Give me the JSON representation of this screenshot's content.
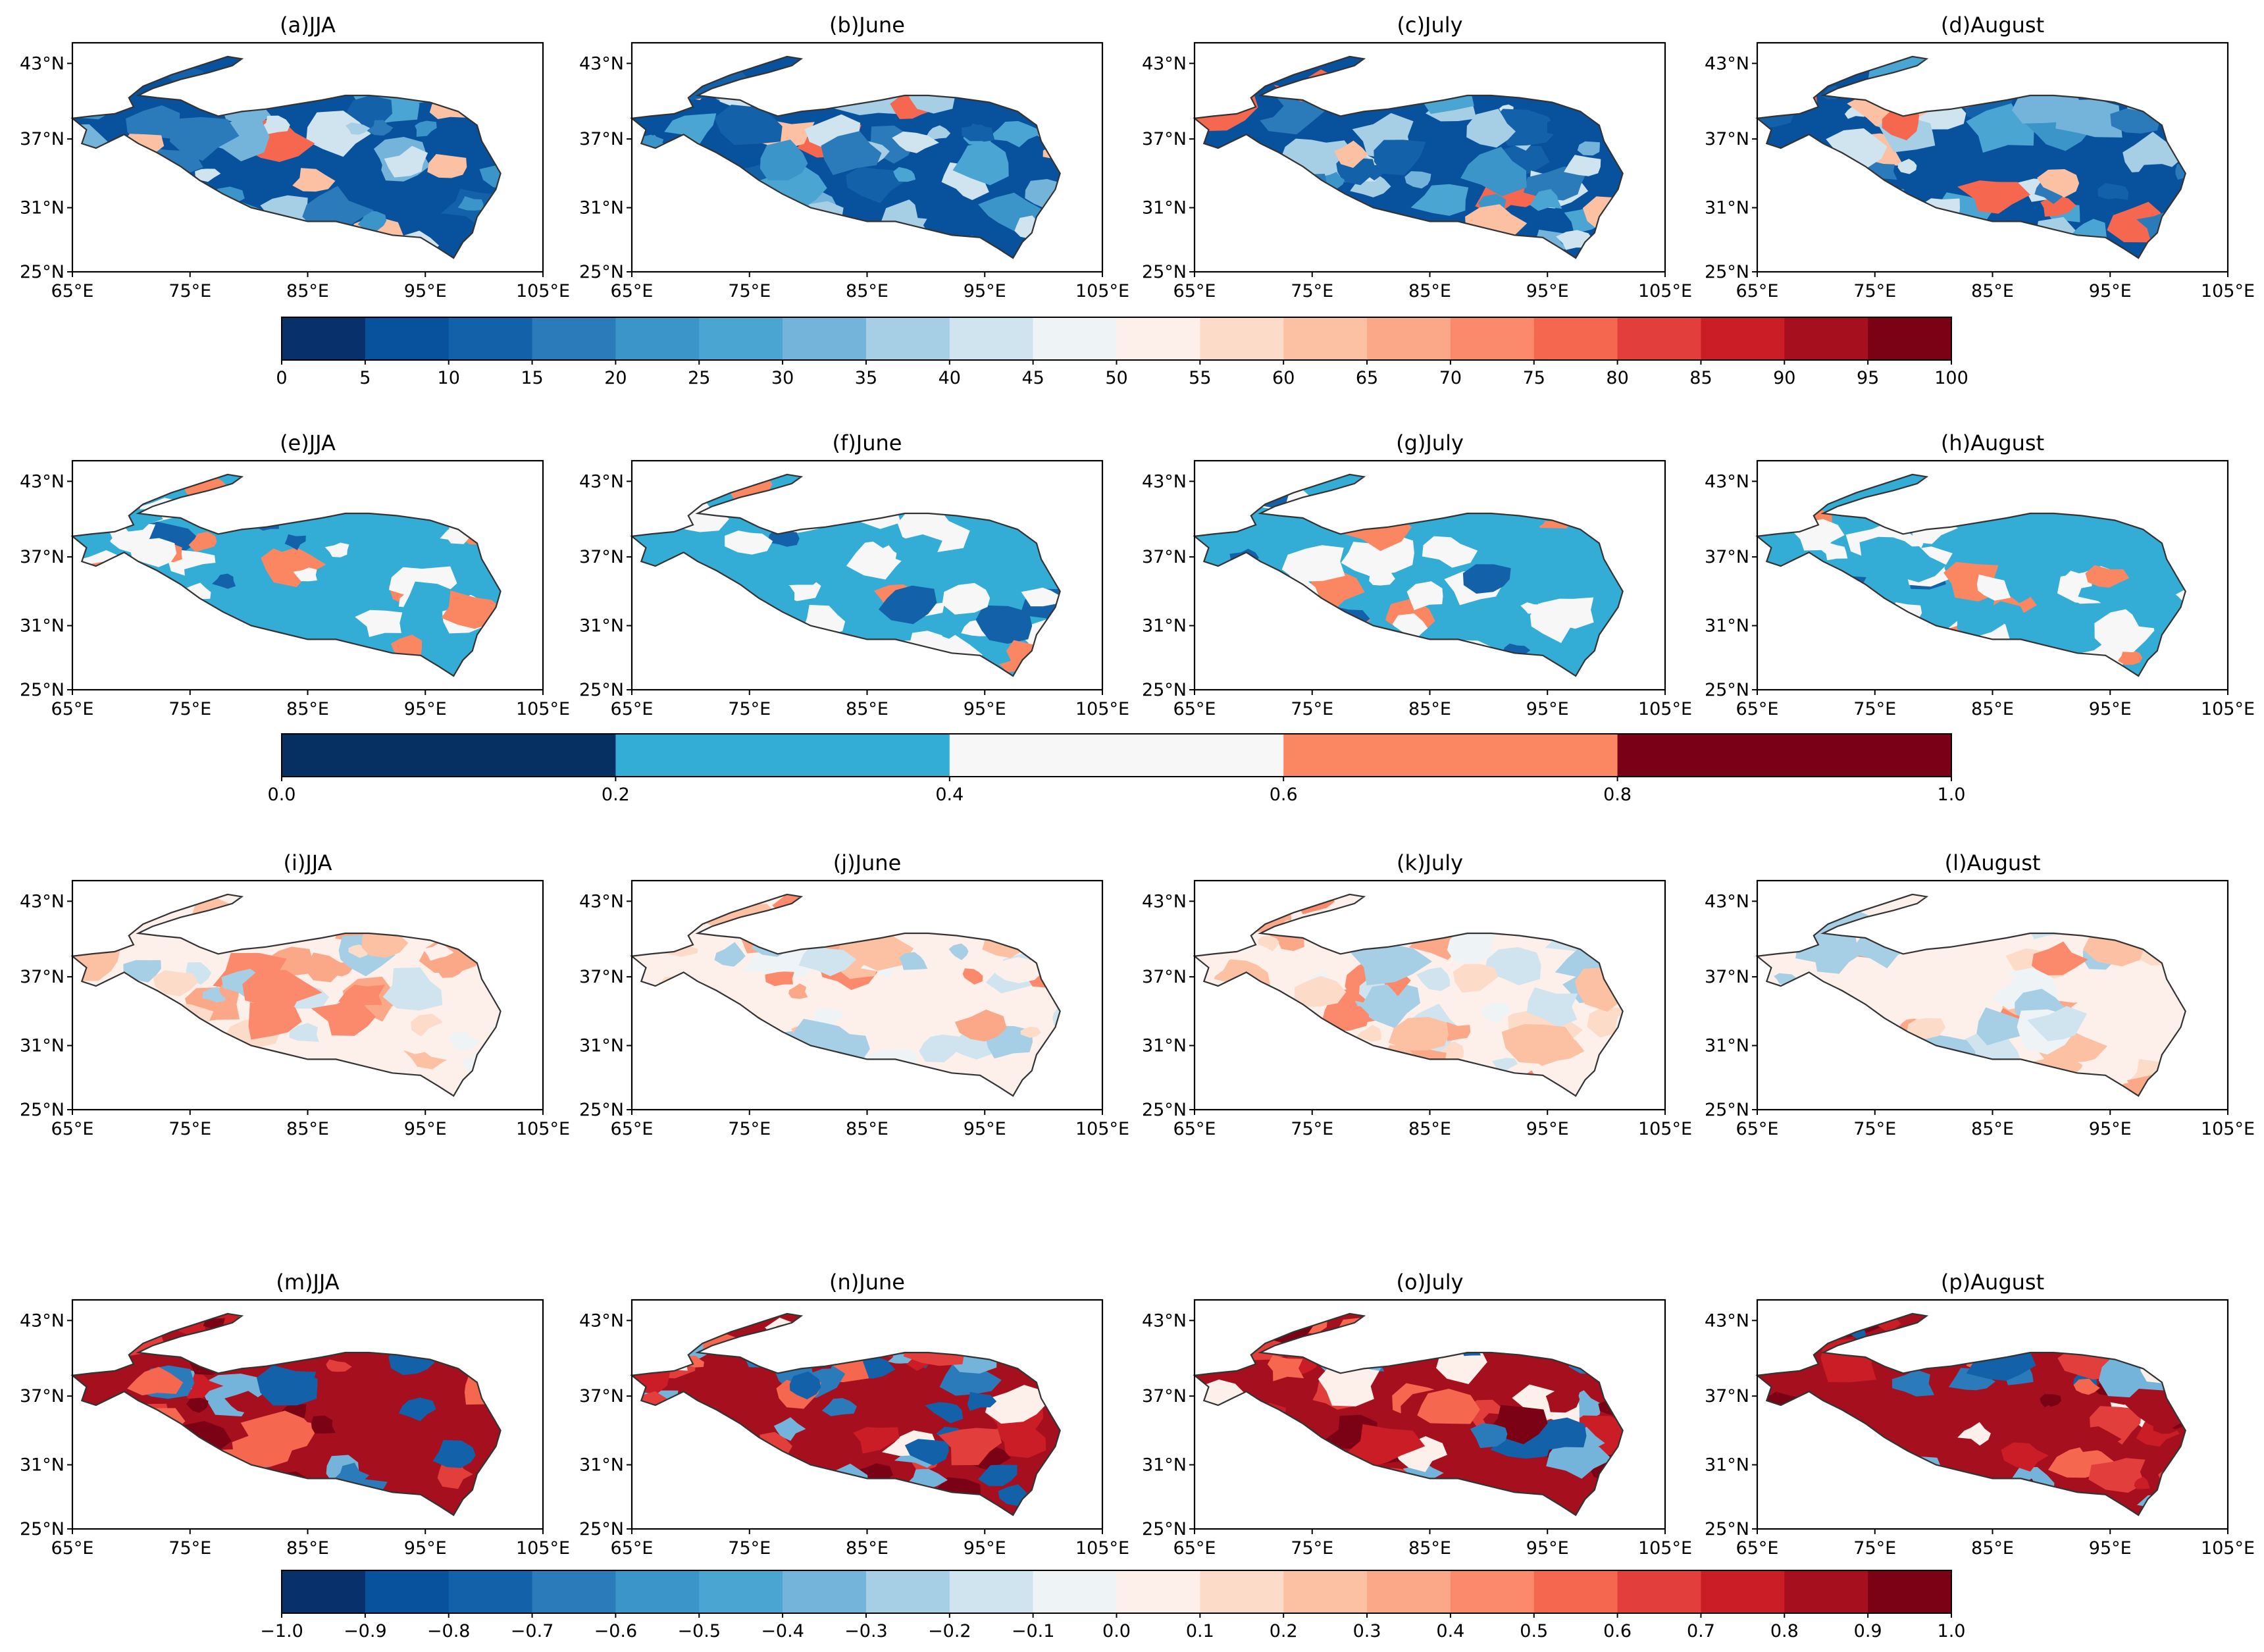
{
  "figure": {
    "longitude_ticks": [
      "65°E",
      "75°E",
      "85°E",
      "95°E",
      "105°E"
    ],
    "latitude_ticks": [
      "43°N",
      "37°N",
      "31°N",
      "25°N"
    ],
    "rows": [
      {
        "panels": [
          {
            "title": "(a)JJA"
          },
          {
            "title": "(b)June"
          },
          {
            "title": "(c)July"
          },
          {
            "title": "(d)August"
          }
        ],
        "palette": "blue_heavy",
        "colorbar": {
          "colors": [
            "#08306b",
            "#08519c",
            "#1361a9",
            "#2b7bba",
            "#3c95c9",
            "#4ba5d3",
            "#74b4da",
            "#a6cfe6",
            "#d0e4ef",
            "#eef3f6",
            "#fdf0ea",
            "#fcdcc9",
            "#fcc0a2",
            "#fba889",
            "#fa8a6b",
            "#f5674f",
            "#e23e3b",
            "#cb1d25",
            "#a50f1e",
            "#7b0215"
          ],
          "tick_labels": [
            "0",
            "5",
            "10",
            "15",
            "20",
            "25",
            "30",
            "35",
            "40",
            "45",
            "50",
            "55",
            "60",
            "65",
            "70",
            "75",
            "80",
            "85",
            "90",
            "95",
            "100"
          ]
        }
      },
      {
        "panels": [
          {
            "title": "(e)JJA"
          },
          {
            "title": "(f)June"
          },
          {
            "title": "(g)July"
          },
          {
            "title": "(h)August"
          }
        ],
        "palette": "mixed_five",
        "colorbar": {
          "colors": [
            "#053061",
            "#33acd6",
            "#f7f7f7",
            "#fb8762",
            "#7a0018"
          ],
          "tick_labels": [
            "0.0",
            "0.2",
            "0.4",
            "0.6",
            "0.8",
            "1.0"
          ]
        }
      },
      {
        "panels": [
          {
            "title": "(i)JJA"
          },
          {
            "title": "(j)June"
          },
          {
            "title": "(k)July"
          },
          {
            "title": "(l)August"
          }
        ],
        "palette": "soft_diverging",
        "colorbar": null
      },
      {
        "panels": [
          {
            "title": "(m)JJA"
          },
          {
            "title": "(n)June"
          },
          {
            "title": "(o)July"
          },
          {
            "title": "(p)August"
          }
        ],
        "palette": "strong_diverging",
        "colorbar": {
          "colors": [
            "#08306b",
            "#08519c",
            "#1361a9",
            "#2b7bba",
            "#3c95c9",
            "#4ba5d3",
            "#74b4da",
            "#a6cfe6",
            "#d0e4ef",
            "#eef3f6",
            "#fdf0ea",
            "#fcdcc9",
            "#fcc0a2",
            "#fba889",
            "#fa8a6b",
            "#f5674f",
            "#e23e3b",
            "#cb1d25",
            "#a50f1e",
            "#7b0215"
          ],
          "tick_labels": [
            "−1.0",
            "−0.9",
            "−0.8",
            "−0.7",
            "−0.6",
            "−0.5",
            "−0.4",
            "−0.3",
            "−0.2",
            "−0.1",
            "0.0",
            "0.1",
            "0.2",
            "0.3",
            "0.4",
            "0.5",
            "0.6",
            "0.7",
            "0.8",
            "0.9",
            "1.0"
          ]
        }
      }
    ],
    "palettes": {
      "blue_heavy": [
        "#08519c",
        "#1361a9",
        "#2b7bba",
        "#3c95c9",
        "#4ba5d3",
        "#74b4da",
        "#a6cfe6",
        "#d0e4ef",
        "#fcc0a2",
        "#f5674f"
      ],
      "mixed_five": [
        "#33acd6",
        "#33acd6",
        "#f7f7f7",
        "#f7f7f7",
        "#1361a9",
        "#fb8762",
        "#33acd6",
        "#f7f7f7"
      ],
      "soft_diverging": [
        "#fdf0ea",
        "#fcdcc9",
        "#fcc0a2",
        "#fba889",
        "#eef3f6",
        "#d0e4ef",
        "#a6cfe6",
        "#fa8a6b"
      ],
      "strong_diverging": [
        "#a50f1e",
        "#cb1d25",
        "#7b0215",
        "#e23e3b",
        "#f5674f",
        "#2b7bba",
        "#74b4da",
        "#1361a9",
        "#fdf0ea",
        "#a50f1e"
      ]
    }
  }
}
